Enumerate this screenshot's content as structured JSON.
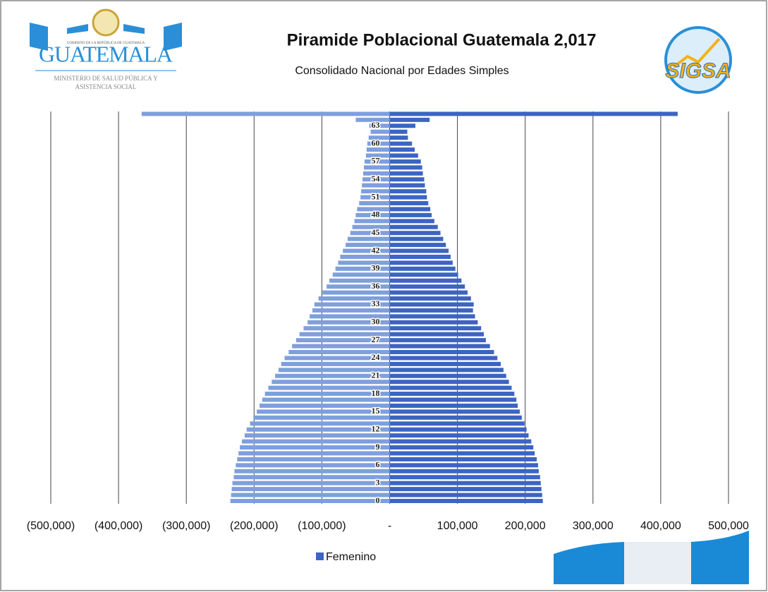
{
  "header": {
    "left_logo": {
      "top": "GOBIERNO DE LA REPÚBLICA DE GUATEMALA",
      "name": "GUATEMALA",
      "line1": "MINISTERIO DE SALUD PÚBLICA Y",
      "line2": "ASISTENCIA SOCIAL"
    },
    "right_logo": {
      "name": "SIGSA"
    }
  },
  "chart_data": {
    "type": "bar",
    "orientation": "horizontal",
    "stacked": "diverging",
    "title": "Piramide Poblacional Guatemala 2,017",
    "subtitle": "Consolidado Nacional por Edades Simples",
    "categories": [
      "0",
      null,
      null,
      "3",
      null,
      null,
      "6",
      null,
      null,
      "9",
      null,
      null,
      "12",
      null,
      null,
      "15",
      null,
      null,
      "18",
      null,
      null,
      "21",
      null,
      null,
      "24",
      null,
      null,
      "27",
      null,
      null,
      "30",
      null,
      null,
      "33",
      null,
      null,
      "36",
      null,
      null,
      "39",
      null,
      null,
      "42",
      null,
      null,
      "45",
      null,
      null,
      "48",
      null,
      null,
      "51",
      null,
      null,
      "54",
      null,
      null,
      "57",
      null,
      null,
      "60",
      null,
      null,
      "63",
      null,
      null
    ],
    "series": [
      {
        "color": "#7f9fdc",
        "values": [
          -235000,
          -234000,
          -233000,
          -232000,
          -230000,
          -229000,
          -227000,
          -225000,
          -223000,
          -221000,
          -218000,
          -214000,
          -211000,
          -206000,
          -201000,
          -196000,
          -192000,
          -188000,
          -184000,
          -179000,
          -174000,
          -169000,
          -164000,
          -160000,
          -155000,
          -149000,
          -144000,
          -138000,
          -133000,
          -127000,
          -121000,
          -118000,
          -114000,
          -111000,
          -105000,
          -99000,
          -93000,
          -89000,
          -84000,
          -80000,
          -76000,
          -73000,
          -69000,
          -65000,
          -62000,
          -58000,
          -55000,
          -52000,
          -50000,
          -48000,
          -45000,
          -43000,
          -42000,
          -41000,
          -40000,
          -39000,
          -38000,
          -37000,
          -35000,
          -34000,
          -33000,
          -31000,
          -28000,
          -30000,
          -50000,
          -366000
        ]
      },
      {
        "name": "Femenino",
        "color": "#3c64c2",
        "values": [
          226000,
          225000,
          224000,
          223000,
          222000,
          220000,
          219000,
          217000,
          214000,
          212000,
          209000,
          205000,
          202000,
          199000,
          195000,
          192000,
          189000,
          187000,
          184000,
          180000,
          176000,
          172000,
          168000,
          164000,
          159000,
          154000,
          148000,
          142000,
          139000,
          135000,
          130000,
          126000,
          123000,
          124000,
          120000,
          115000,
          111000,
          106000,
          101000,
          97000,
          93000,
          90000,
          87000,
          83000,
          79000,
          75000,
          71000,
          66000,
          62000,
          60000,
          57000,
          55000,
          54000,
          52000,
          51000,
          49000,
          48000,
          46000,
          42000,
          37000,
          33000,
          27000,
          26000,
          38000,
          59000,
          425000
        ]
      }
    ],
    "xlim": [
      -500000,
      500000
    ],
    "xticks": [
      {
        "value": -500000,
        "label": "(500,000)"
      },
      {
        "value": -400000,
        "label": "(400,000)"
      },
      {
        "value": -300000,
        "label": "(300,000)"
      },
      {
        "value": -200000,
        "label": "(200,000)"
      },
      {
        "value": -100000,
        "label": "(100,000)"
      },
      {
        "value": 0,
        "label": "-"
      },
      {
        "value": 100000,
        "label": "100,000"
      },
      {
        "value": 200000,
        "label": "200,000"
      },
      {
        "value": 300000,
        "label": "300,000"
      },
      {
        "value": 400000,
        "label": "400,000"
      },
      {
        "value": 500000,
        "label": "500,000"
      }
    ],
    "grid": true,
    "legend": "bottom"
  }
}
